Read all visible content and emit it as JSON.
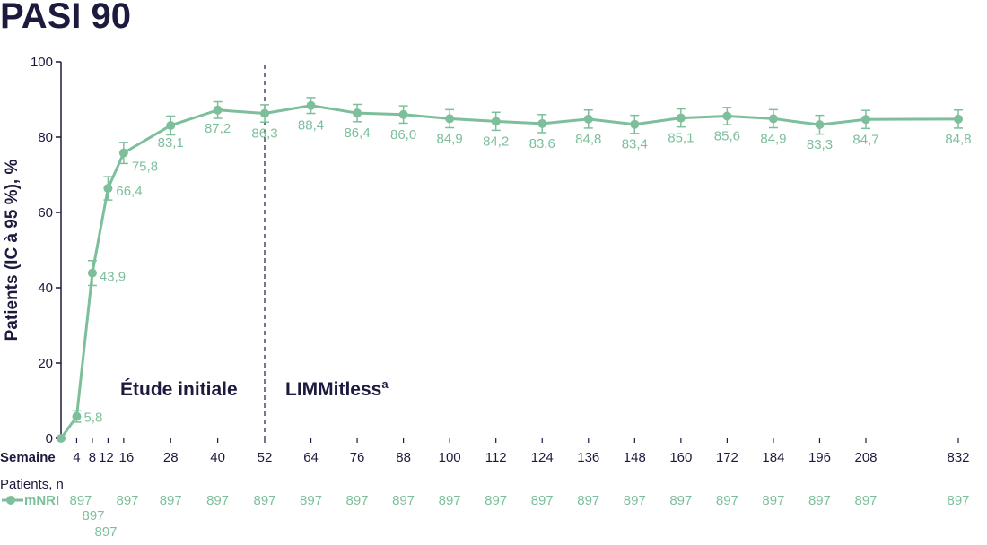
{
  "title": "PASI 90",
  "colors": {
    "series": "#7dbf9b",
    "text": "#1c1a3d"
  },
  "regions": {
    "left": "Étude initiale",
    "right": "LIMMitless",
    "right_sup": "a"
  },
  "patients_label": "Patients, n",
  "chart_data": {
    "type": "line",
    "title": "PASI 90",
    "xlabel": "Semaine",
    "ylabel": "Patients (IC à 95 %), %",
    "ylim": [
      0,
      100
    ],
    "yticks": [
      "0",
      "20",
      "40",
      "60",
      "80",
      "100"
    ],
    "xticks": [
      "4",
      "8",
      "12",
      "16",
      "28",
      "40",
      "52",
      "64",
      "76",
      "88",
      "100",
      "112",
      "124",
      "136",
      "148",
      "160",
      "172",
      "184",
      "196",
      "208",
      "832"
    ],
    "divider_at_week": 52,
    "series": [
      {
        "name": "mNRI",
        "x": [
          0,
          4,
          8,
          12,
          16,
          28,
          40,
          52,
          64,
          76,
          88,
          100,
          112,
          124,
          136,
          148,
          160,
          172,
          184,
          196,
          208,
          832
        ],
        "values": [
          0,
          5.8,
          43.9,
          66.4,
          75.8,
          83.1,
          87.2,
          86.3,
          88.4,
          86.4,
          86.0,
          84.9,
          84.2,
          83.6,
          84.8,
          83.4,
          85.1,
          85.6,
          84.9,
          83.3,
          84.7,
          84.8
        ],
        "labels": [
          "",
          "5,8",
          "43,9",
          "66,4",
          "75,8",
          "83,1",
          "87,2",
          "86,3",
          "88,4",
          "86,4",
          "86,0",
          "84,9",
          "84,2",
          "83,6",
          "84,8",
          "83,4",
          "85,1",
          "85,6",
          "84,9",
          "83,3",
          "84,7",
          "84,8"
        ],
        "ci_halfwidth": [
          0,
          1.5,
          3.3,
          3.1,
          2.8,
          2.5,
          2.2,
          2.3,
          2.1,
          2.3,
          2.3,
          2.4,
          2.4,
          2.4,
          2.4,
          2.4,
          2.4,
          2.3,
          2.4,
          2.5,
          2.4,
          2.4
        ],
        "n": [
          "897",
          "897",
          "897",
          "897",
          "897",
          "897",
          "897",
          "897",
          "897",
          "897",
          "897",
          "897",
          "897",
          "897",
          "897",
          "897",
          "897",
          "897",
          "897",
          "897",
          "897"
        ]
      }
    ]
  }
}
